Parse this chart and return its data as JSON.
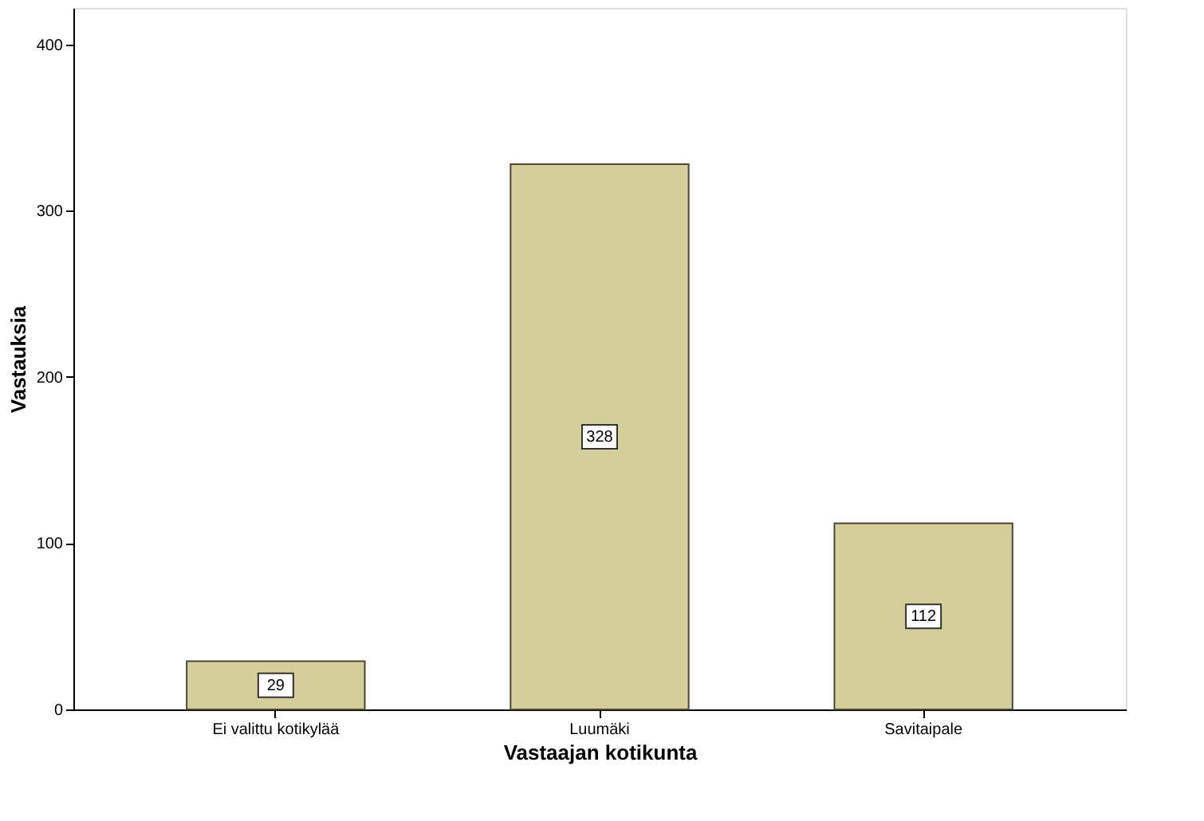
{
  "chart_data": {
    "type": "bar",
    "xlabel": "Vastaajan kotikunta",
    "ylabel": "Vastauksia",
    "categories": [
      "Ei valittu kotikylää",
      "Luumäki",
      "Savitaipale"
    ],
    "values": [
      29,
      328,
      112
    ],
    "color": "#d4ce9a",
    "ylim": [
      0,
      422
    ],
    "yticks": [
      0,
      100,
      200,
      300,
      400
    ],
    "grid": false,
    "data_labels": true
  }
}
